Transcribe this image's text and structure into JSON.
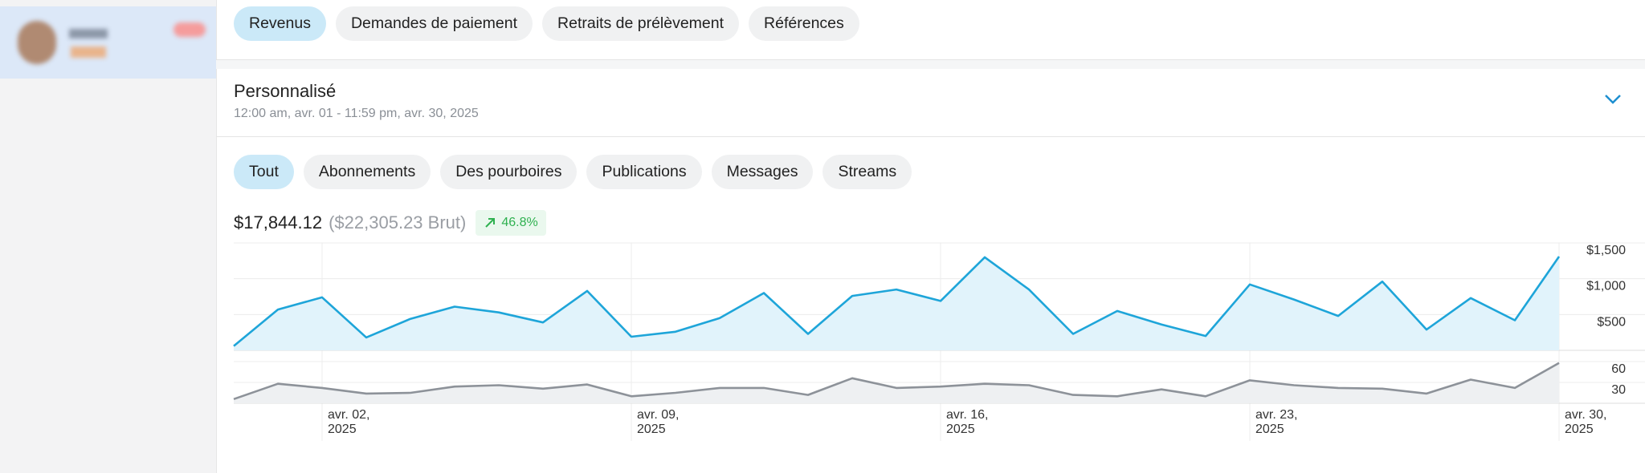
{
  "tabs": [
    "Revenus",
    "Demandes de paiement",
    "Retraits de prélèvement",
    "Références"
  ],
  "period": {
    "title": "Personnalisé",
    "range": "12:00 am, avr. 01 - 11:59 pm, avr. 30, 2025"
  },
  "filters": [
    "Tout",
    "Abonnements",
    "Des pourboires",
    "Publications",
    "Messages",
    "Streams"
  ],
  "summary": {
    "net": "$17,844.12",
    "gross": "($22,305.23 Brut)",
    "change": "46.8%"
  },
  "chart_data": [
    {
      "type": "area",
      "color": "#1ea5d9",
      "fill": "#e1f3fb",
      "values": [
        60,
        570,
        740,
        180,
        440,
        610,
        530,
        390,
        830,
        190,
        260,
        450,
        800,
        230,
        760,
        850,
        690,
        1300,
        850,
        230,
        550,
        360,
        200,
        920,
        710,
        480,
        960,
        290,
        730,
        420,
        1310
      ],
      "ylim": [
        0,
        1500
      ],
      "yticks": [
        {
          "value": 500,
          "label": "$500"
        },
        {
          "value": 1000,
          "label": "$1,000"
        },
        {
          "value": 1500,
          "label": "$1,500"
        }
      ],
      "grid": true
    },
    {
      "type": "area",
      "color": "#8d9299",
      "fill": "#eef0f2",
      "categories": [
        null,
        null,
        "avr. 02, 2025",
        null,
        null,
        null,
        null,
        null,
        null,
        "avr. 09, 2025",
        null,
        null,
        null,
        null,
        null,
        null,
        "avr. 16, 2025",
        null,
        null,
        null,
        null,
        null,
        null,
        "avr. 23, 2025",
        null,
        null,
        null,
        null,
        null,
        null,
        "avr. 30, 2025"
      ],
      "values": [
        6,
        28,
        22,
        14,
        15,
        24,
        26,
        21,
        27,
        10,
        15,
        22,
        22,
        12,
        36,
        22,
        24,
        28,
        26,
        12,
        10,
        20,
        10,
        33,
        26,
        22,
        21,
        14,
        34,
        22,
        58
      ],
      "ylim": [
        0,
        60
      ],
      "yticks": [
        30,
        60
      ],
      "grid": true
    }
  ]
}
